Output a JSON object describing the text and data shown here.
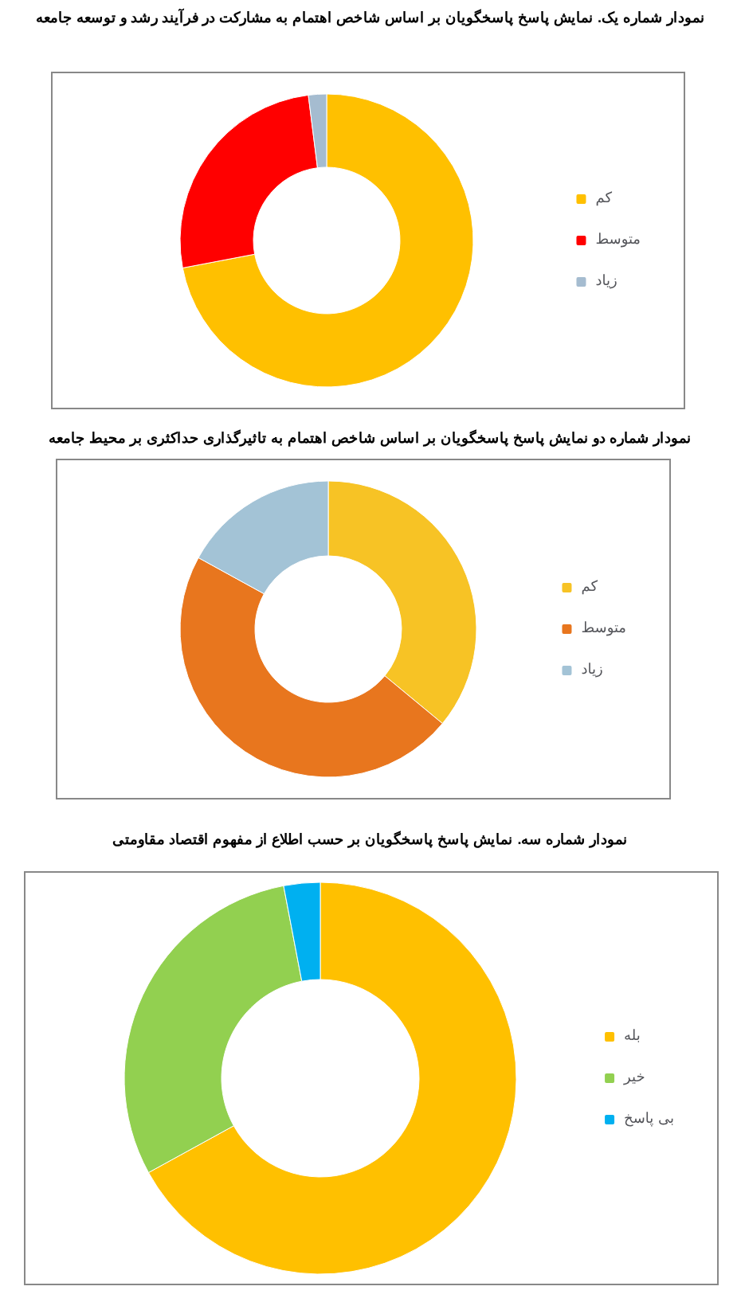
{
  "chart_data": [
    {
      "type": "donut",
      "title": "نمودار شماره یک. نمایش پاسخ پاسخگویان بر اساس شاخص اهتمام به مشارکت در فرآیند رشد و توسعه جامعه",
      "categories": [
        "کم",
        "متوسط",
        "زیاد"
      ],
      "values": [
        72,
        26,
        2
      ],
      "colors": [
        "#ffc000",
        "#ff0000",
        "#a5bcd0"
      ],
      "legend": "right"
    },
    {
      "type": "donut",
      "title": "نمودار شماره دو نمایش پاسخ پاسخگویان بر اساس شاخص اهتمام به تاثیرگذاری حداکثری بر محیط جامعه",
      "categories": [
        "کم",
        "متوسط",
        "زیاد"
      ],
      "values": [
        36,
        47,
        17
      ],
      "colors": [
        "#f7c325",
        "#e8761e",
        "#a3c3d6"
      ],
      "legend": "right"
    },
    {
      "type": "donut",
      "title": "نمودار شماره سه. نمایش پاسخ پاسخگویان بر حسب اطلاع از مفهوم اقتصاد مقاومتی",
      "categories": [
        "بله",
        "خیر",
        "بی پاسخ"
      ],
      "values": [
        67,
        30,
        3
      ],
      "colors": [
        "#ffc000",
        "#92d050",
        "#00b0f0"
      ],
      "legend": "right"
    }
  ]
}
